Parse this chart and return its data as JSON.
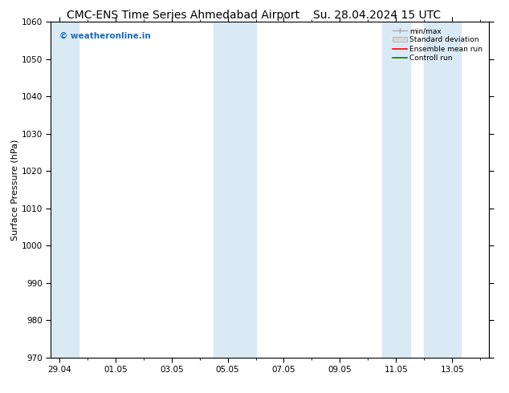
{
  "title": "CMC-ENS Time Series Ahmedabad Airport",
  "title2": "Su. 28.04.2024 15 UTC",
  "ylabel": "Surface Pressure (hPa)",
  "ylim": [
    970,
    1060
  ],
  "yticks": [
    970,
    980,
    990,
    1000,
    1010,
    1020,
    1030,
    1040,
    1050,
    1060
  ],
  "xtick_labels": [
    "29.04",
    "01.05",
    "03.05",
    "05.05",
    "07.05",
    "09.05",
    "11.05",
    "13.05"
  ],
  "xtick_positions": [
    0,
    2,
    4,
    6,
    8,
    10,
    12,
    14
  ],
  "xlim": [
    -0.3,
    15.3
  ],
  "shaded_bands": [
    {
      "x_start": -0.3,
      "x_end": 0.7,
      "color": "#daeaf5"
    },
    {
      "x_start": 5.5,
      "x_end": 7.0,
      "color": "#daeaf5"
    },
    {
      "x_start": 11.5,
      "x_end": 12.5,
      "color": "#daeaf5"
    },
    {
      "x_start": 13.0,
      "x_end": 14.3,
      "color": "#daeaf5"
    }
  ],
  "watermark": "© weatheronline.in",
  "watermark_color": "#1a6bbf",
  "legend_labels": [
    "min/max",
    "Standard deviation",
    "Ensemble mean run",
    "Controll run"
  ],
  "legend_colors": [
    "#aaaaaa",
    "#cccccc",
    "#ff0000",
    "#008000"
  ],
  "bg_color": "#ffffff",
  "spine_color": "#000000",
  "grid_color": "#cccccc",
  "title_fontsize": 10,
  "label_fontsize": 8,
  "tick_fontsize": 7.5
}
